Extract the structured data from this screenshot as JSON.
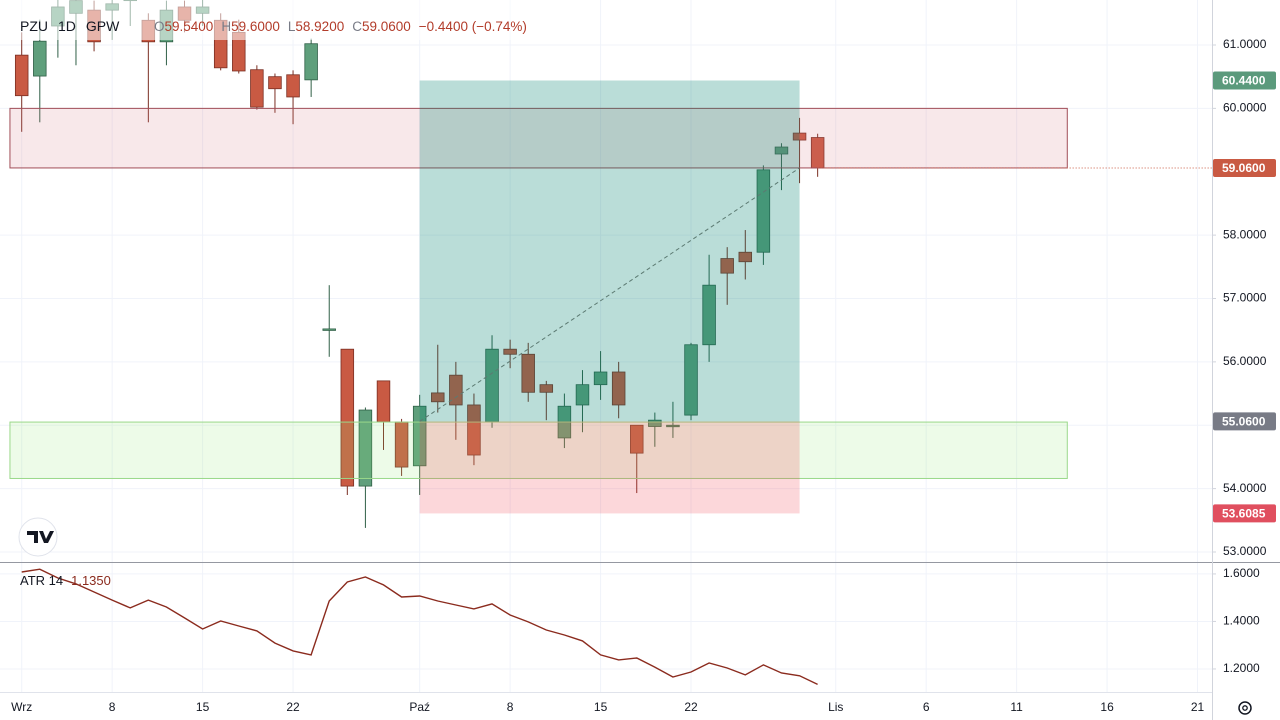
{
  "chart_data": [
    {
      "type": "candlestick",
      "legend": {
        "symbol": "PZU",
        "interval": "1D",
        "exchange": "GPW",
        "fields": [
          {
            "key": "O",
            "value": "59.5400"
          },
          {
            "key": "H",
            "value": "59.6000"
          },
          {
            "key": "L",
            "value": "58.9200"
          },
          {
            "key": "C",
            "value": "59.0600"
          }
        ],
        "change": "−0.4400 (−0.74%)"
      },
      "x": [
        0,
        1,
        2,
        3,
        4,
        5,
        6,
        7,
        8,
        9,
        10,
        11,
        12,
        13,
        14,
        15,
        16,
        17,
        18,
        19,
        20,
        21,
        22,
        23,
        24,
        25,
        26,
        27,
        28,
        29,
        30,
        31,
        32,
        33,
        34,
        35,
        36,
        37,
        38,
        39,
        40,
        41,
        42,
        43,
        44
      ],
      "open": [
        60.84,
        60.51,
        61.3,
        61.5,
        61.55,
        61.55,
        61.7,
        61.39,
        61.05,
        61.6,
        61.5,
        61.39,
        61.2,
        60.61,
        60.5,
        60.53,
        60.45,
        56.52,
        56.2,
        54.04,
        55.7,
        55.05,
        54.36,
        55.51,
        55.79,
        55.32,
        55.05,
        56.2,
        56.12,
        55.64,
        54.8,
        55.32,
        55.64,
        55.84,
        55.0,
        54.98,
        55.0,
        55.16,
        56.27,
        57.63,
        57.73,
        57.73,
        59.28,
        59.61,
        59.54
      ],
      "high": [
        61.2,
        61.4,
        61.8,
        61.9,
        61.7,
        61.8,
        62.0,
        61.5,
        61.7,
        61.7,
        61.8,
        61.5,
        61.4,
        60.68,
        60.55,
        60.6,
        61.1,
        57.21,
        56.2,
        55.28,
        55.7,
        55.1,
        55.48,
        56.27,
        56.0,
        55.5,
        56.42,
        56.35,
        56.3,
        55.7,
        55.5,
        55.87,
        56.17,
        56.0,
        55.0,
        55.2,
        55.37,
        56.3,
        57.69,
        57.81,
        58.08,
        59.1,
        59.45,
        59.85,
        59.6
      ],
      "low": [
        59.63,
        59.78,
        60.8,
        60.68,
        60.9,
        61.08,
        61.3,
        59.78,
        60.68,
        61.2,
        61.3,
        60.6,
        60.55,
        59.98,
        59.93,
        59.75,
        60.18,
        56.08,
        53.9,
        53.38,
        54.61,
        54.2,
        53.9,
        55.2,
        54.77,
        54.37,
        54.96,
        55.9,
        55.37,
        55.08,
        54.64,
        54.89,
        55.4,
        55.11,
        53.93,
        54.66,
        54.8,
        55.08,
        56.0,
        56.9,
        57.3,
        57.53,
        58.71,
        58.82,
        58.92
      ],
      "close": [
        60.2,
        61.06,
        61.6,
        61.7,
        61.05,
        61.65,
        61.8,
        61.05,
        61.55,
        61.39,
        61.6,
        60.64,
        60.59,
        60.02,
        60.31,
        60.18,
        61.02,
        56.52,
        54.04,
        55.24,
        55.05,
        54.34,
        55.3,
        55.37,
        55.32,
        54.53,
        56.2,
        56.12,
        55.52,
        55.52,
        55.3,
        55.64,
        55.84,
        55.32,
        54.56,
        55.08,
        55.0,
        56.27,
        57.21,
        57.4,
        57.58,
        59.03,
        59.39,
        59.5,
        59.06
      ],
      "up_color": "#5f9f7c",
      "down_color": "#c95a43",
      "up_edge": "#2f5f46",
      "down_edge": "#7a2e22",
      "xlim": [
        -1.2,
        65.8
      ],
      "xticks": [
        {
          "value": 0,
          "label": "Wrz"
        },
        8,
        15,
        22,
        {
          "value": 22,
          "label": "Paź"
        },
        8,
        15,
        22,
        {
          "value": 45,
          "label": "Lis"
        },
        6,
        11,
        16,
        21
      ],
      "xtick_pos": [
        0,
        5,
        10,
        15,
        22,
        27,
        32,
        37,
        45,
        50,
        55,
        60,
        65
      ],
      "ylim": [
        52.842,
        61.71
      ],
      "yticks": [
        {
          "value": 53,
          "label": "53.0000"
        },
        {
          "value": 54,
          "label": "54.0000"
        },
        {
          "value": 55,
          "label": "55.0000"
        },
        {
          "value": 56,
          "label": "56.0000"
        },
        {
          "value": 57,
          "label": "57.0000"
        },
        {
          "value": 58,
          "label": "58.0000"
        },
        {
          "value": 60,
          "label": "60.0000"
        },
        {
          "value": 61,
          "label": "61.0000"
        }
      ],
      "grid": true,
      "zones": [
        {
          "top": 60.0,
          "bottom": 59.06,
          "start": -0.65,
          "end": 57.8,
          "fill": "rgba(214,120,132,0.17)",
          "stroke": "#a14d57"
        },
        {
          "top": 55.05,
          "bottom": 54.16,
          "start": -0.65,
          "end": 57.8,
          "fill": "rgba(150,232,120,0.17)",
          "stroke": "#9ad88a"
        }
      ],
      "position": {
        "start": 22,
        "end": 43,
        "target": {
          "value": 60.44,
          "label": "60.4400",
          "color": "#5b9a7c",
          "fill": "rgba(0,128,110,0.27)"
        },
        "entry": {
          "value": 55.06,
          "label": "55.0600",
          "color": "#787b86"
        },
        "stop": {
          "value": 53.6085,
          "label": "53.6085",
          "color": "#e04f5f",
          "fill": "rgba(242,54,69,0.2)"
        }
      },
      "current": {
        "value": 59.06,
        "label": "59.0600",
        "color": "#c95a43"
      }
    },
    {
      "type": "line",
      "x": [
        0,
        1,
        2,
        3,
        4,
        5,
        6,
        7,
        8,
        9,
        10,
        11,
        12,
        13,
        14,
        15,
        16,
        17,
        18,
        19,
        20,
        21,
        22,
        23,
        24,
        25,
        26,
        27,
        28,
        29,
        30,
        31,
        32,
        33,
        34,
        35,
        36,
        37,
        38,
        39,
        40,
        41,
        42,
        43,
        44
      ],
      "series": [
        {
          "name": "ATR 14",
          "color": "#8b2b1e",
          "values": [
            1.608,
            1.62,
            1.583,
            1.558,
            1.524,
            1.49,
            1.457,
            1.49,
            1.461,
            1.415,
            1.368,
            1.402,
            1.381,
            1.36,
            1.309,
            1.276,
            1.259,
            1.486,
            1.566,
            1.587,
            1.554,
            1.503,
            1.507,
            1.486,
            1.469,
            1.453,
            1.474,
            1.427,
            1.398,
            1.364,
            1.343,
            1.318,
            1.259,
            1.238,
            1.246,
            1.208,
            1.166,
            1.187,
            1.225,
            1.204,
            1.175,
            1.217,
            1.183,
            1.171,
            1.135
          ]
        }
      ],
      "legend_value": "1.1350",
      "ylim": [
        1.103,
        1.646
      ],
      "yticks": [
        {
          "value": 1.2,
          "label": "1.2000"
        },
        {
          "value": 1.4,
          "label": "1.4000"
        },
        {
          "value": 1.6,
          "label": "1.6000"
        }
      ],
      "grid": true
    }
  ]
}
